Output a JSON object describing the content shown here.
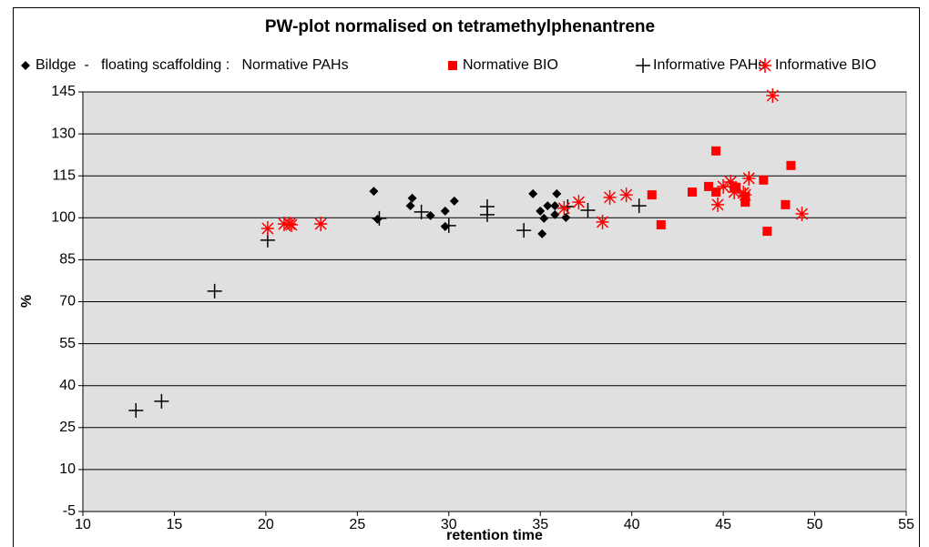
{
  "chart_data": {
    "type": "scatter",
    "title": "PW-plot normalised on tetramethylphenantrene",
    "x_label": "retention time",
    "y_label": "%",
    "xlim": [
      10,
      55
    ],
    "ylim": [
      -5,
      145
    ],
    "xticks": [
      10,
      15,
      20,
      25,
      30,
      35,
      40,
      45,
      50,
      55
    ],
    "yticks": [
      -5,
      10,
      25,
      40,
      55,
      70,
      85,
      100,
      115,
      130,
      145
    ],
    "grid": true,
    "legend": "top",
    "series": [
      {
        "name": "Bildge  -   floating scaffolding :   Normative PAHs",
        "color": "#000000",
        "marker": "diamond",
        "x": [
          25.9,
          26.1,
          28.0,
          27.9,
          29.0,
          29.8,
          29.8,
          30.3,
          34.6,
          35.0,
          35.2,
          35.1,
          35.4,
          35.8,
          35.9,
          35.8,
          36.4
        ],
        "values": [
          109.5,
          99.5,
          107,
          104.3,
          100.8,
          102.4,
          96.9,
          106,
          108.6,
          102.4,
          99.8,
          94.3,
          104.3,
          101.1,
          108.6,
          104.3,
          100.1
        ]
      },
      {
        "name": "Normative BIO",
        "color": "#ff0000",
        "marker": "square",
        "x": [
          41.1,
          41.6,
          43.3,
          44.2,
          44.6,
          44.6,
          45.6,
          45.7,
          46.2,
          46.2,
          47.2,
          47.4,
          48.4,
          48.7
        ],
        "values": [
          108.2,
          97.5,
          109.2,
          111.2,
          109.2,
          123.9,
          110.9,
          110.9,
          107.6,
          105.6,
          113.5,
          95.2,
          104.7,
          118.7
        ]
      },
      {
        "name": "Informative PAHs",
        "color": "#000000",
        "marker": "plus",
        "x": [
          12.9,
          14.3,
          17.2,
          20.1,
          26.2,
          28.5,
          30.0,
          32.1,
          32.1,
          34.1,
          36.5,
          37.6,
          40.4
        ],
        "values": [
          31.1,
          34.4,
          73.8,
          92,
          99.8,
          102.1,
          97.2,
          104,
          101.1,
          95.5,
          104,
          102.7,
          104.3
        ]
      },
      {
        "name": "Informative BIO",
        "color": "#ff0000",
        "marker": "asterisk",
        "x": [
          20.1,
          21.0,
          21.3,
          21.4,
          23.0,
          36.3,
          37.1,
          38.4,
          38.8,
          39.7,
          44.7,
          45.0,
          45.4,
          45.6,
          46.1,
          46.2,
          46.4,
          47.7,
          49.3
        ],
        "values": [
          96.2,
          97.8,
          97.8,
          97.5,
          97.8,
          103.4,
          105.6,
          98.5,
          107.3,
          108.2,
          104.7,
          111.2,
          112.8,
          109.2,
          108.9,
          108.2,
          114.1,
          143.7,
          101.4
        ]
      }
    ]
  }
}
